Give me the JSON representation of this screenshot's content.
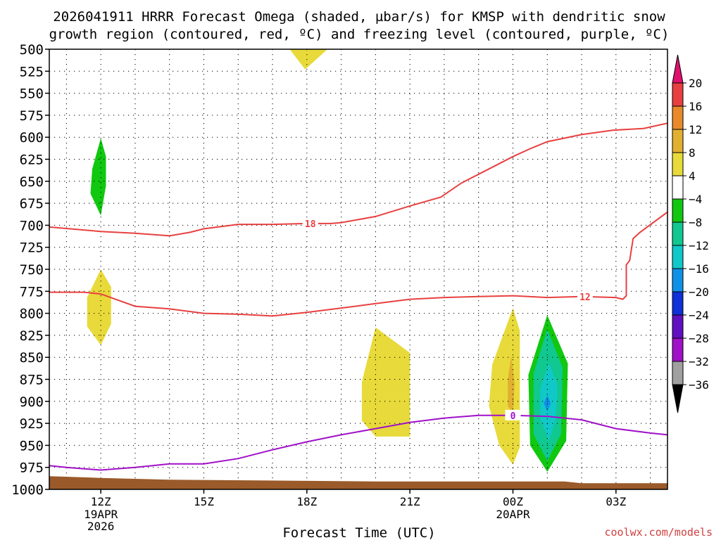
{
  "chart_data": {
    "type": "time-height-section",
    "title_line1": "2026041911 HRRR Forecast Omega (shaded, µbar/s) for KMSP with dendritic snow",
    "title_line2": "growth region (contoured, red, ºC) and freezing level (contoured, purple, ºC)",
    "xlabel": "Forecast Time (UTC)",
    "watermark": "coolwx.com/models",
    "x_range_hours": [
      10.5,
      28.5
    ],
    "y_range_hpa": [
      500,
      1000
    ],
    "y_ticks": [
      500,
      525,
      550,
      575,
      600,
      625,
      650,
      675,
      700,
      725,
      750,
      775,
      800,
      825,
      850,
      875,
      900,
      925,
      950,
      975,
      1000
    ],
    "x_ticks": [
      {
        "hour": 12,
        "label": "12Z",
        "sub1": "19APR",
        "sub2": "2026"
      },
      {
        "hour": 15,
        "label": "15Z",
        "sub1": "",
        "sub2": ""
      },
      {
        "hour": 18,
        "label": "18Z",
        "sub1": "",
        "sub2": ""
      },
      {
        "hour": 21,
        "label": "21Z",
        "sub1": "",
        "sub2": ""
      },
      {
        "hour": 24,
        "label": "00Z",
        "sub1": "20APR",
        "sub2": ""
      },
      {
        "hour": 27,
        "label": "03Z",
        "sub1": "",
        "sub2": ""
      }
    ],
    "grid": true,
    "colorbar": {
      "labels": [
        "20",
        "16",
        "12",
        "8",
        "4",
        "−4",
        "−8",
        "−12",
        "−16",
        "−20",
        "−24",
        "−28",
        "−32",
        "−36"
      ],
      "colors": [
        "#e0106e",
        "#e84040",
        "#e88a2c",
        "#e2b030",
        "#e8da3a",
        "#ffffff",
        "#10c810",
        "#10c890",
        "#10c8c8",
        "#1090e8",
        "#1030d8",
        "#6010c0",
        "#a010c8",
        "#a0a0a0",
        "#000000"
      ]
    },
    "contours": [
      {
        "label": "18",
        "color": "#e84040",
        "label_at": [
          18.1,
          698
        ],
        "points": [
          [
            10.5,
            702
          ],
          [
            12,
            707
          ],
          [
            13,
            709
          ],
          [
            14,
            712
          ],
          [
            14.6,
            708
          ],
          [
            15,
            704
          ],
          [
            16,
            699
          ],
          [
            17,
            699
          ],
          [
            18,
            698
          ],
          [
            18.7,
            698
          ],
          [
            19,
            697
          ],
          [
            20,
            690
          ],
          [
            21,
            678
          ],
          [
            21.9,
            668
          ],
          [
            22.5,
            652
          ],
          [
            23.5,
            632
          ],
          [
            24,
            622
          ],
          [
            24.5,
            613
          ],
          [
            25,
            605
          ],
          [
            26,
            597
          ],
          [
            26.9,
            592
          ],
          [
            27.8,
            590
          ],
          [
            28.5,
            584
          ]
        ]
      },
      {
        "label": "12",
        "color": "#e84040",
        "label_at": [
          26.1,
          781
        ],
        "points": [
          [
            10.5,
            776
          ],
          [
            11.5,
            776
          ],
          [
            12,
            778
          ],
          [
            13,
            792
          ],
          [
            14,
            795
          ],
          [
            15,
            800
          ],
          [
            16,
            801
          ],
          [
            17,
            803
          ],
          [
            18,
            799
          ],
          [
            19,
            794
          ],
          [
            20,
            789
          ],
          [
            21,
            784
          ],
          [
            22,
            782
          ],
          [
            23,
            781
          ],
          [
            24,
            780
          ],
          [
            25,
            782
          ],
          [
            26,
            781
          ],
          [
            27,
            782
          ],
          [
            27.2,
            784
          ],
          [
            27.3,
            780
          ],
          [
            27.3,
            745
          ],
          [
            27.4,
            740
          ],
          [
            27.5,
            715
          ],
          [
            27.7,
            708
          ],
          [
            28.5,
            685
          ]
        ]
      },
      {
        "label": "0",
        "color": "#a010c8",
        "label_at": [
          24,
          916
        ],
        "points": [
          [
            10.5,
            973
          ],
          [
            11,
            975
          ],
          [
            12,
            978
          ],
          [
            13,
            975
          ],
          [
            14,
            971
          ],
          [
            15,
            971
          ],
          [
            16,
            965
          ],
          [
            17,
            955
          ],
          [
            18,
            946
          ],
          [
            19,
            938
          ],
          [
            20,
            931
          ],
          [
            21,
            924
          ],
          [
            22,
            919
          ],
          [
            23,
            916
          ],
          [
            24,
            916
          ],
          [
            25,
            917
          ],
          [
            26,
            921
          ],
          [
            27,
            931
          ],
          [
            28,
            936
          ],
          [
            28.5,
            938
          ]
        ]
      }
    ],
    "shaded": [
      {
        "value_band": "4 to 8",
        "color": "#e8da3a",
        "points": [
          [
            17.5,
            500
          ],
          [
            18.6,
            500
          ],
          [
            17.95,
            523
          ]
        ]
      },
      {
        "value_band": "-4 to -8",
        "color": "#10c810",
        "points": [
          [
            12,
            601
          ],
          [
            12.15,
            622
          ],
          [
            12.15,
            655
          ],
          [
            12.0,
            689
          ],
          [
            11.7,
            664
          ],
          [
            11.75,
            636
          ]
        ]
      },
      {
        "value_band": "4 to 8",
        "color": "#e8da3a",
        "points": [
          [
            12,
            750
          ],
          [
            12.3,
            770
          ],
          [
            12.3,
            812
          ],
          [
            12.0,
            836
          ],
          [
            11.6,
            815
          ],
          [
            11.6,
            782
          ]
        ]
      },
      {
        "value_band": "4 to 8",
        "color": "#e8da3a",
        "points": [
          [
            20.0,
            816
          ],
          [
            21,
            845
          ],
          [
            21,
            940
          ],
          [
            20.0,
            940
          ],
          [
            19.6,
            922
          ],
          [
            19.6,
            878
          ]
        ]
      },
      {
        "value_band": "4 to 8",
        "color": "#e8da3a",
        "points": [
          [
            24,
            794
          ],
          [
            24.2,
            820
          ],
          [
            24.2,
            952
          ],
          [
            24,
            972
          ],
          [
            23.6,
            950
          ],
          [
            23.3,
            905
          ],
          [
            23.4,
            858
          ]
        ]
      },
      {
        "value_band": "8 to 12",
        "color": "#e2b030",
        "points": [
          [
            23.95,
            848
          ],
          [
            24.05,
            880
          ],
          [
            24,
            915
          ],
          [
            23.85,
            905
          ],
          [
            23.85,
            875
          ]
        ]
      },
      {
        "value_band": "-4 to -8",
        "color": "#10c810",
        "points": [
          [
            25.0,
            802
          ],
          [
            25.6,
            857
          ],
          [
            25.55,
            945
          ],
          [
            25.0,
            980
          ],
          [
            24.5,
            950
          ],
          [
            24.45,
            870
          ]
        ]
      },
      {
        "value_band": "-8 to -12",
        "color": "#10c890",
        "points": [
          [
            25.0,
            818
          ],
          [
            25.45,
            862
          ],
          [
            25.4,
            937
          ],
          [
            25.0,
            968
          ],
          [
            24.6,
            937
          ],
          [
            24.6,
            868
          ]
        ]
      },
      {
        "value_band": "-12 to -16",
        "color": "#10c8c8",
        "points": [
          [
            25.05,
            856
          ],
          [
            25.3,
            882
          ],
          [
            25.25,
            920
          ],
          [
            25.05,
            945
          ],
          [
            24.8,
            920
          ],
          [
            24.8,
            885
          ]
        ]
      },
      {
        "value_band": "-16 to -20",
        "color": "#1090e8",
        "points": [
          [
            25.0,
            893
          ],
          [
            25.1,
            902
          ],
          [
            25.0,
            912
          ],
          [
            24.9,
            902
          ]
        ]
      }
    ],
    "surface": {
      "color": "#9a5a2a",
      "top": [
        [
          10.5,
          985
        ],
        [
          12,
          987
        ],
        [
          14,
          989
        ],
        [
          20,
          991
        ],
        [
          24,
          991
        ],
        [
          25.5,
          991
        ],
        [
          26,
          993
        ],
        [
          28.5,
          993
        ]
      ]
    }
  }
}
